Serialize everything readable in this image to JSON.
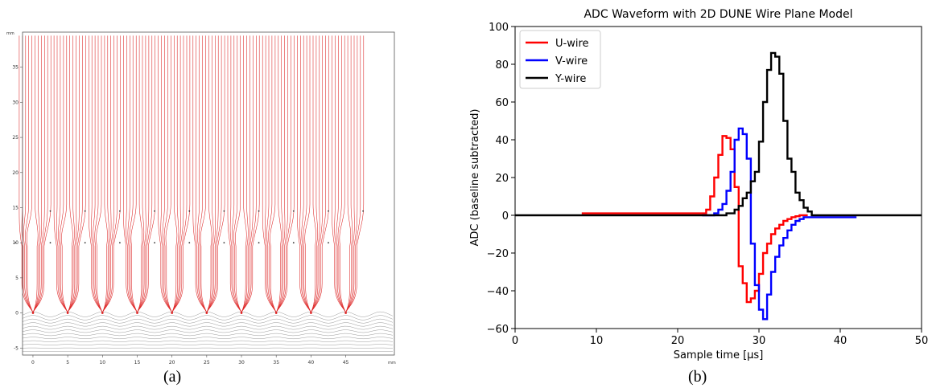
{
  "captions": {
    "a": "(a)",
    "b": "(b)"
  },
  "chart_data": [
    {
      "type": "line",
      "panel": "a",
      "title": "",
      "unit_top": "mm",
      "unit_bottom": "mm",
      "x_ticks": [
        "0",
        "5",
        "10",
        "15",
        "20",
        "25",
        "30",
        "35",
        "40",
        "45"
      ],
      "y_ticks": [
        "-5",
        "0",
        "5",
        "10",
        "15",
        "20",
        "25",
        "30",
        "35"
      ],
      "xlim": [
        -1.5,
        52
      ],
      "ylim": [
        -6,
        40
      ],
      "wire_positions_x": [
        0,
        5,
        10,
        15,
        20,
        25,
        30,
        35,
        40,
        45
      ],
      "wire_rows_y": [
        0,
        10,
        14.5
      ],
      "colors": {
        "field_lines": "#dd2222",
        "equipotential": "#9a9a9a",
        "frame": "#555555"
      },
      "grid": false
    },
    {
      "type": "line",
      "panel": "b",
      "title": "ADC Waveform with 2D DUNE Wire Plane Model",
      "xlabel": "Sample time [μs]",
      "ylabel": "ADC (baseline subtracted)",
      "xlim": [
        0,
        50
      ],
      "ylim": [
        -60,
        100
      ],
      "x_ticks": [
        "0",
        "10",
        "20",
        "30",
        "40",
        "50"
      ],
      "y_ticks": [
        "-60",
        "-40",
        "-20",
        "0",
        "20",
        "40",
        "60",
        "80",
        "100"
      ],
      "legend": "top-left",
      "grid": false,
      "series": [
        {
          "name": "U-wire",
          "color": "#ff0000",
          "x": [
            8.2,
            23,
            23.5,
            24,
            24.5,
            25,
            25.5,
            26,
            26.5,
            27,
            27.5,
            28,
            28.5,
            29,
            29.5,
            30,
            30.5,
            31,
            31.5,
            32,
            32.5,
            33,
            33.5,
            34,
            34.5,
            35,
            36
          ],
          "y": [
            1,
            1,
            3,
            10,
            20,
            32,
            42,
            41,
            35,
            15,
            -27,
            -36,
            -46,
            -44,
            -40,
            -31,
            -20,
            -15,
            -10,
            -7,
            -5,
            -3,
            -2,
            -1,
            -0.5,
            0,
            0
          ]
        },
        {
          "name": "V-wire",
          "color": "#0000ff",
          "x": [
            23,
            24,
            24.5,
            25,
            25.5,
            26,
            26.5,
            27,
            27.5,
            28,
            28.5,
            29,
            29.5,
            30,
            30.5,
            31,
            31.5,
            32,
            32.5,
            33,
            33.5,
            34,
            34.5,
            35,
            35.5,
            36,
            37,
            38,
            42
          ],
          "y": [
            0,
            0,
            1,
            3,
            6,
            13,
            23,
            40,
            46,
            43,
            30,
            -15,
            -37,
            -50,
            -55,
            -42,
            -30,
            -22,
            -16,
            -12,
            -8,
            -5,
            -3,
            -2,
            -1,
            -1,
            -1,
            -1,
            -1
          ]
        },
        {
          "name": "Y-wire",
          "color": "#000000",
          "x": [
            0,
            25,
            26,
            27,
            27.5,
            28,
            28.5,
            29,
            29.5,
            30,
            30.5,
            31,
            31.5,
            32,
            32.5,
            33,
            33.5,
            34,
            34.5,
            35,
            35.5,
            36,
            36.5,
            50
          ],
          "y": [
            0,
            0,
            1,
            3,
            5,
            9,
            12,
            18,
            23,
            39,
            60,
            77,
            86,
            84,
            75,
            50,
            30,
            23,
            12,
            8,
            4,
            2,
            0,
            0
          ]
        }
      ]
    }
  ]
}
